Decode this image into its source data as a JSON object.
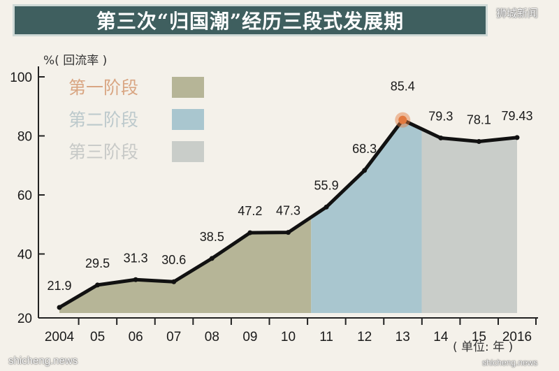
{
  "header": {
    "title": "第三次“归国潮”经历三段式发展期"
  },
  "watermarks": {
    "top": "狮城新闻",
    "bottom_left": "shicheng.news",
    "bottom_right": "shicheng.news"
  },
  "colors": {
    "stage1": "#b6b597",
    "stage2": "#a9c6cf",
    "stage3": "#c9cdc9",
    "line": "#111111",
    "highlight": "#e2793f",
    "banner": "#3f5f5f"
  },
  "chart_data": {
    "type": "area",
    "ylabel": "%( 回流率 )",
    "xunit": "( 单位: 年 )",
    "ylim": [
      20,
      100
    ],
    "yticks": [
      20,
      40,
      60,
      80,
      100
    ],
    "x_tick_labels": [
      "2004",
      "05",
      "06",
      "07",
      "08",
      "09",
      "10",
      "11",
      "12",
      "13",
      "14",
      "15",
      "2016"
    ],
    "data_labels": [
      "21.9",
      "29.5",
      "31.3",
      "30.6",
      "38.5",
      "47.2",
      "47.3",
      "55.9",
      "68.3",
      "85.4",
      "79.3",
      "78.1",
      "79.43"
    ],
    "x": [
      2004,
      2005,
      2006,
      2007,
      2008,
      2009,
      2010,
      2011,
      2012,
      2013,
      2014,
      2015,
      2016
    ],
    "values": [
      21.9,
      29.5,
      31.3,
      30.6,
      38.5,
      47.2,
      47.3,
      55.9,
      68.3,
      85.4,
      79.3,
      78.1,
      79.43
    ],
    "peak_year": 2013,
    "stages": [
      {
        "name": "第一阶段",
        "from": 2004,
        "to": 2010.6
      },
      {
        "name": "第二阶段",
        "from": 2010.6,
        "to": 2013.5
      },
      {
        "name": "第三阶段",
        "from": 2013.5,
        "to": 2016
      }
    ]
  }
}
